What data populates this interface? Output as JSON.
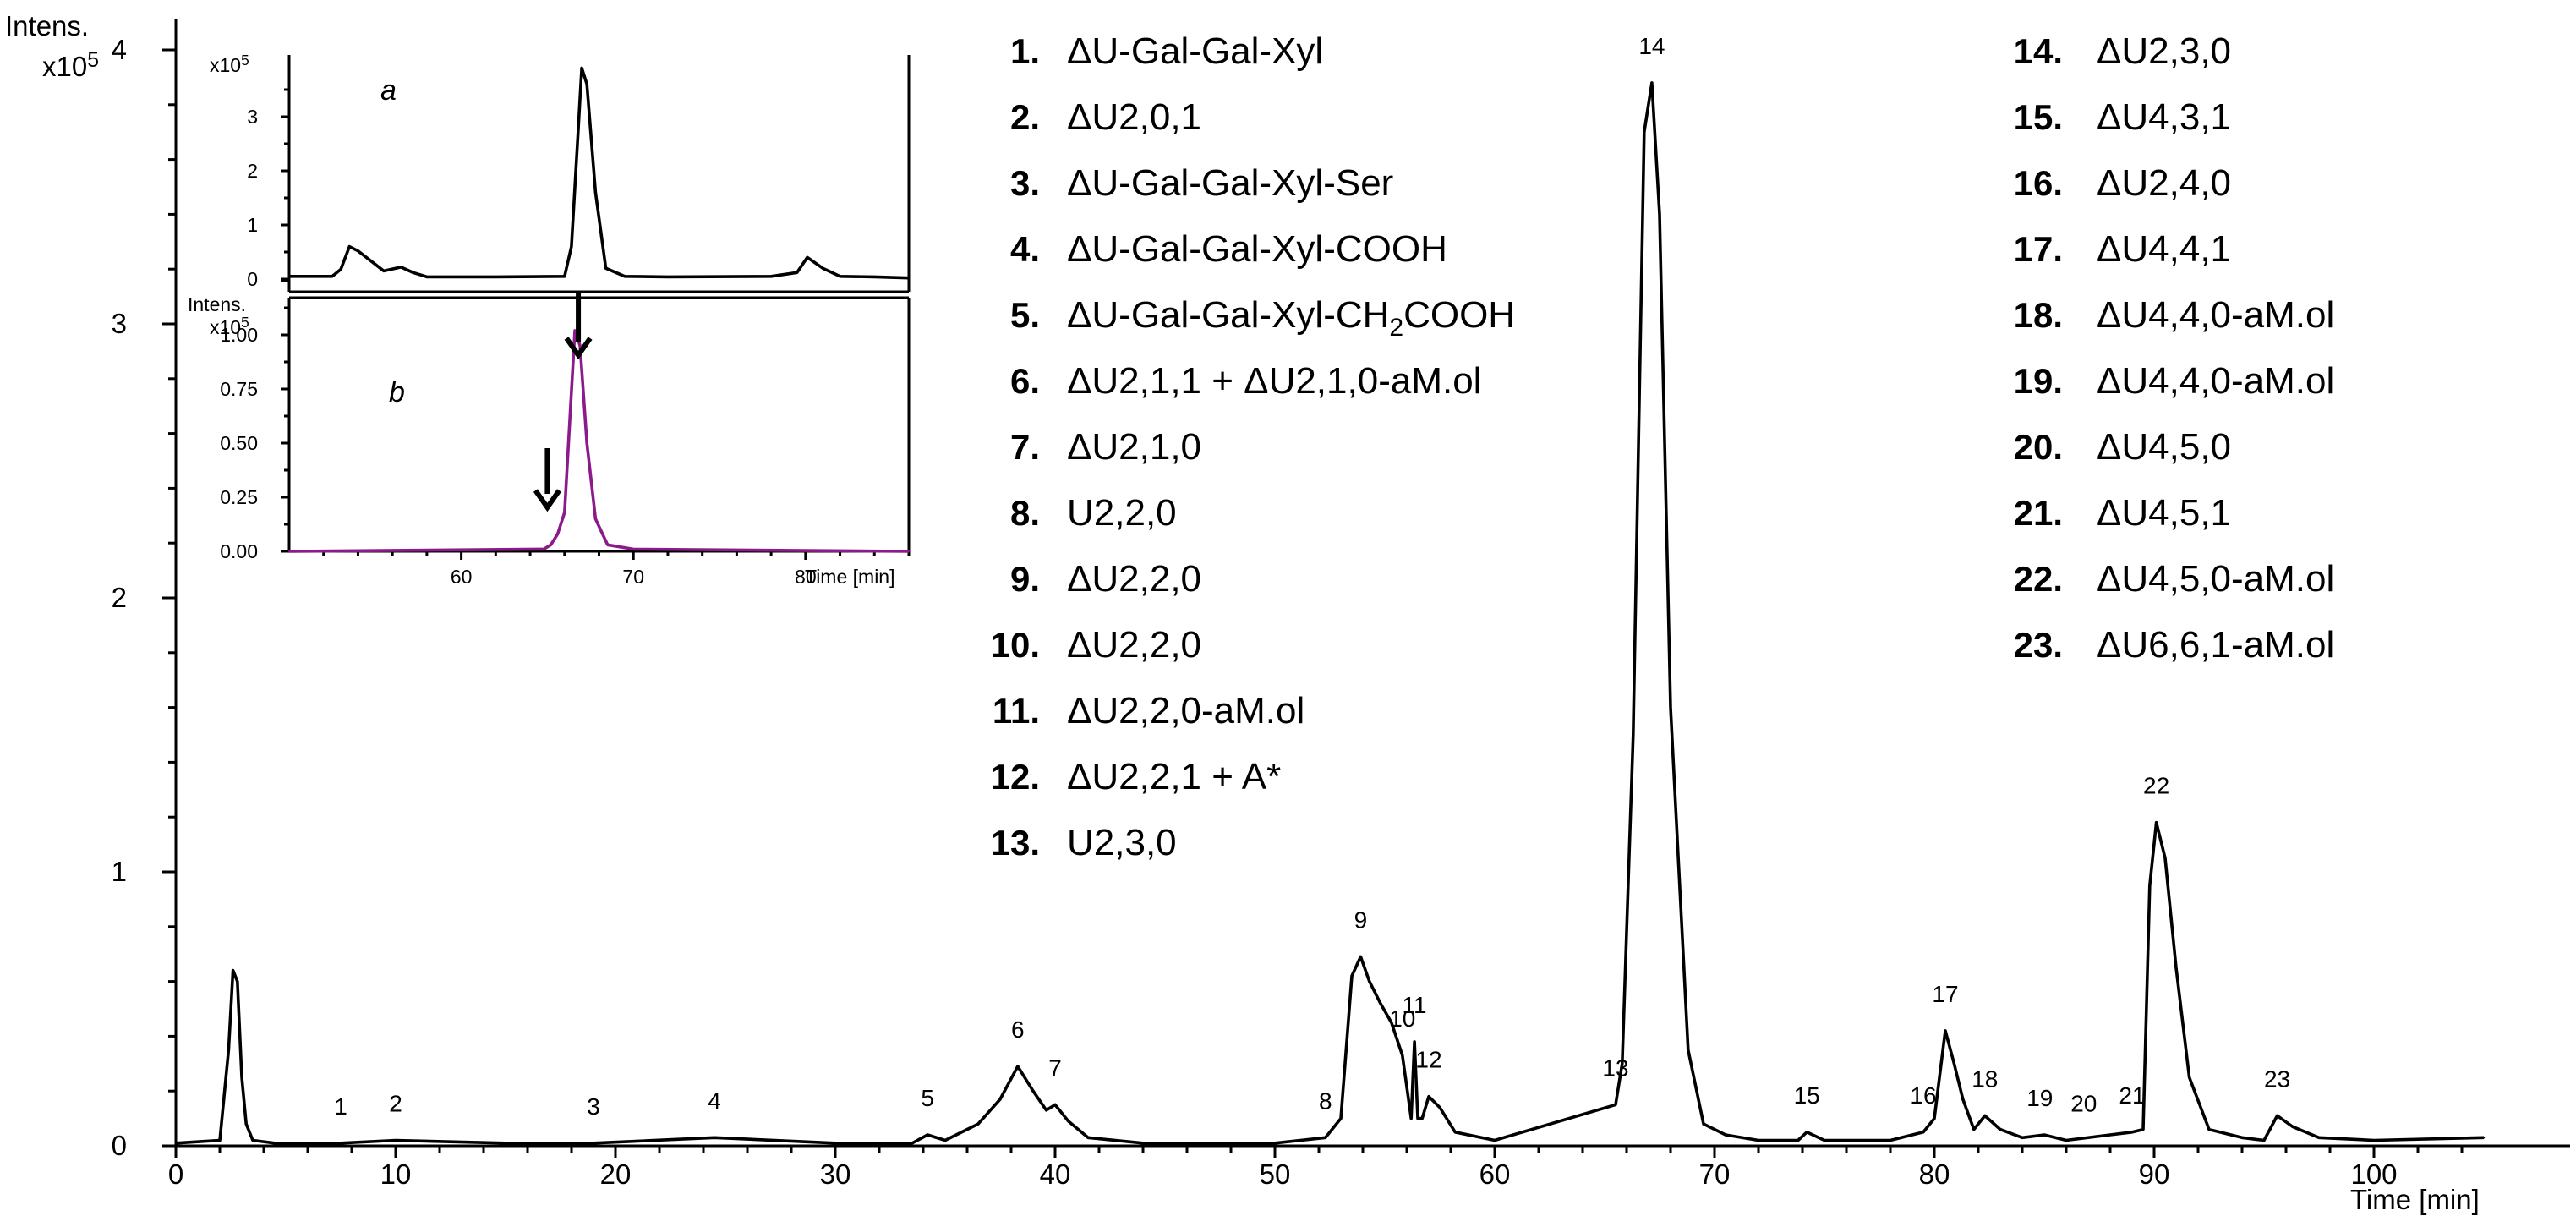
{
  "chart_data": [
    {
      "type": "line",
      "ylabel": "Intens.",
      "yscale": "x10^5",
      "xlabel": "Time [min]",
      "xlim": [
        0,
        105
      ],
      "ylim": [
        0,
        4
      ],
      "xticks": [
        "0",
        "10",
        "20",
        "30",
        "40",
        "50",
        "60",
        "70",
        "80",
        "90",
        "100"
      ],
      "yticks": [
        "0",
        "1",
        "2",
        "3",
        "4"
      ],
      "grid": false,
      "series": [
        {
          "x": [
            0,
            2.0,
            2.4,
            2.6,
            2.8,
            3.0,
            3.2,
            3.5,
            4.5,
            7.5,
            10,
            15,
            19,
            24.5,
            30,
            33.5,
            34.2,
            35,
            36.5,
            37.5,
            38.3,
            39.0,
            39.6,
            40.0,
            40.6,
            41.5,
            44,
            47,
            50,
            52.3,
            53.0,
            53.5,
            53.9,
            54.3,
            54.8,
            55.3,
            55.8,
            56.2,
            56.35,
            56.5,
            56.7,
            57.0,
            57.5,
            58.2,
            60,
            65.5,
            65.8,
            66.3,
            66.8,
            67.15,
            67.5,
            68.0,
            68.8,
            69.5,
            70.5,
            72,
            73.8,
            74.2,
            75,
            78,
            79.5,
            80.0,
            80.5,
            80.9,
            81.3,
            81.8,
            82.3,
            83.0,
            84,
            85,
            86,
            88,
            89.0,
            89.5,
            89.8,
            90.1,
            90.5,
            91.0,
            91.6,
            92.5,
            94,
            95.0,
            95.6,
            96.3,
            97.5,
            100,
            105
          ],
          "y": [
            0.01,
            0.02,
            0.35,
            0.64,
            0.6,
            0.25,
            0.08,
            0.02,
            0.01,
            0.01,
            0.02,
            0.01,
            0.01,
            0.03,
            0.01,
            0.01,
            0.04,
            0.02,
            0.08,
            0.17,
            0.29,
            0.2,
            0.13,
            0.15,
            0.09,
            0.03,
            0.01,
            0.01,
            0.01,
            0.03,
            0.1,
            0.62,
            0.69,
            0.6,
            0.52,
            0.45,
            0.33,
            0.1,
            0.38,
            0.1,
            0.1,
            0.18,
            0.14,
            0.05,
            0.02,
            0.15,
            0.3,
            1.5,
            3.7,
            3.88,
            3.4,
            1.6,
            0.35,
            0.08,
            0.04,
            0.02,
            0.02,
            0.05,
            0.02,
            0.02,
            0.05,
            0.1,
            0.42,
            0.3,
            0.17,
            0.06,
            0.11,
            0.06,
            0.03,
            0.04,
            0.02,
            0.04,
            0.05,
            0.06,
            0.95,
            1.18,
            1.05,
            0.65,
            0.25,
            0.06,
            0.03,
            0.02,
            0.11,
            0.07,
            0.03,
            0.02,
            0.03
          ]
        }
      ],
      "peak_labels": [
        {
          "label": "1",
          "x": 7.5,
          "y": 0.01
        },
        {
          "label": "2",
          "x": 10,
          "y": 0.02
        },
        {
          "label": "3",
          "x": 19,
          "y": 0.01
        },
        {
          "label": "4",
          "x": 24.5,
          "y": 0.03
        },
        {
          "label": "5",
          "x": 34.2,
          "y": 0.04
        },
        {
          "label": "6",
          "x": 38.3,
          "y": 0.29
        },
        {
          "label": "7",
          "x": 40.0,
          "y": 0.15
        },
        {
          "label": "8",
          "x": 52.3,
          "y": 0.03
        },
        {
          "label": "9",
          "x": 53.9,
          "y": 0.69
        },
        {
          "label": "10",
          "x": 55.8,
          "y": 0.33
        },
        {
          "label": "11",
          "x": 56.35,
          "y": 0.38
        },
        {
          "label": "12",
          "x": 57.0,
          "y": 0.18
        },
        {
          "label": "13",
          "x": 65.5,
          "y": 0.15
        },
        {
          "label": "14",
          "x": 67.15,
          "y": 3.88
        },
        {
          "label": "15",
          "x": 74.2,
          "y": 0.05
        },
        {
          "label": "16",
          "x": 79.5,
          "y": 0.05
        },
        {
          "label": "17",
          "x": 80.5,
          "y": 0.42
        },
        {
          "label": "18",
          "x": 82.3,
          "y": 0.11
        },
        {
          "label": "19",
          "x": 84.8,
          "y": 0.04
        },
        {
          "label": "20",
          "x": 86.8,
          "y": 0.02
        },
        {
          "label": "21",
          "x": 89.0,
          "y": 0.05
        },
        {
          "label": "22",
          "x": 90.1,
          "y": 1.18
        },
        {
          "label": "23",
          "x": 95.6,
          "y": 0.11
        }
      ],
      "legend": [
        {
          "num": "1.",
          "text": "ΔU-Gal-Gal-Xyl"
        },
        {
          "num": "2.",
          "text": "ΔU2,0,1"
        },
        {
          "num": "3.",
          "text": "ΔU-Gal-Gal-Xyl-Ser"
        },
        {
          "num": "4.",
          "text": "ΔU-Gal-Gal-Xyl-COOH"
        },
        {
          "num": "5.",
          "text": "ΔU-Gal-Gal-Xyl-CH",
          "sub": "2",
          "tail": "COOH"
        },
        {
          "num": "6.",
          "text": "ΔU2,1,1 + ΔU2,1,0-aM.ol"
        },
        {
          "num": "7.",
          "text": "ΔU2,1,0"
        },
        {
          "num": "8.",
          "text": "U2,2,0"
        },
        {
          "num": "9.",
          "text": "ΔU2,2,0"
        },
        {
          "num": "10.",
          "text": "ΔU2,2,0"
        },
        {
          "num": "11.",
          "text": "ΔU2,2,0-aM.ol"
        },
        {
          "num": "12.",
          "text": "ΔU2,2,1 + A*"
        },
        {
          "num": "13.",
          "text": "U2,3,0"
        },
        {
          "num": "14.",
          "text": "ΔU2,3,0"
        },
        {
          "num": "15.",
          "text": "ΔU4,3,1"
        },
        {
          "num": "16.",
          "text": "ΔU2,4,0"
        },
        {
          "num": "17.",
          "text": "ΔU4,4,1"
        },
        {
          "num": "18.",
          "text": "ΔU4,4,0-aM.ol"
        },
        {
          "num": "19.",
          "text": "ΔU4,4,0-aM.ol"
        },
        {
          "num": "20.",
          "text": "ΔU4,5,0"
        },
        {
          "num": "21.",
          "text": "ΔU4,5,1"
        },
        {
          "num": "22.",
          "text": "ΔU4,5,0-aM.ol"
        },
        {
          "num": "23.",
          "text": "ΔU6,6,1-aM.ol"
        }
      ]
    },
    {
      "type": "line",
      "panel": "a",
      "yscale": "x10^5",
      "xlim": [
        50,
        86
      ],
      "ylim": [
        0,
        4
      ],
      "yticks": [
        "0",
        "1",
        "2",
        "3"
      ],
      "series": [
        {
          "x": [
            50,
            52.5,
            53.0,
            53.5,
            54.0,
            55.5,
            56.5,
            57.2,
            58,
            62,
            66.0,
            66.4,
            66.8,
            67.0,
            67.3,
            67.8,
            68.4,
            69.5,
            72,
            78,
            79.5,
            80.1,
            81.0,
            82,
            84,
            86
          ],
          "y": [
            0.05,
            0.05,
            0.18,
            0.6,
            0.52,
            0.15,
            0.22,
            0.12,
            0.04,
            0.04,
            0.05,
            0.6,
            2.8,
            3.9,
            3.6,
            1.6,
            0.2,
            0.05,
            0.04,
            0.05,
            0.12,
            0.4,
            0.2,
            0.05,
            0.04,
            0.02
          ]
        }
      ]
    },
    {
      "type": "line",
      "panel": "b",
      "ylabel": "Intens.",
      "yscale": "x10^5",
      "xlabel": "Time [min]",
      "xlim": [
        50,
        86
      ],
      "ylim": [
        0,
        1.25
      ],
      "xticks": [
        "60",
        "70",
        "80"
      ],
      "yticks": [
        "0.00",
        "0.25",
        "0.50",
        "0.75",
        "1.00"
      ],
      "series": [
        {
          "x": [
            50,
            64.8,
            65.2,
            65.6,
            66.0,
            66.3,
            66.6,
            66.9,
            67.3,
            67.8,
            68.5,
            70,
            86
          ],
          "y": [
            0.0,
            0.01,
            0.03,
            0.08,
            0.18,
            0.6,
            1.02,
            0.95,
            0.5,
            0.15,
            0.03,
            0.01,
            0.0
          ]
        }
      ],
      "arrows": [
        {
          "x": 66.8
        },
        {
          "x": 65.0
        }
      ]
    }
  ]
}
